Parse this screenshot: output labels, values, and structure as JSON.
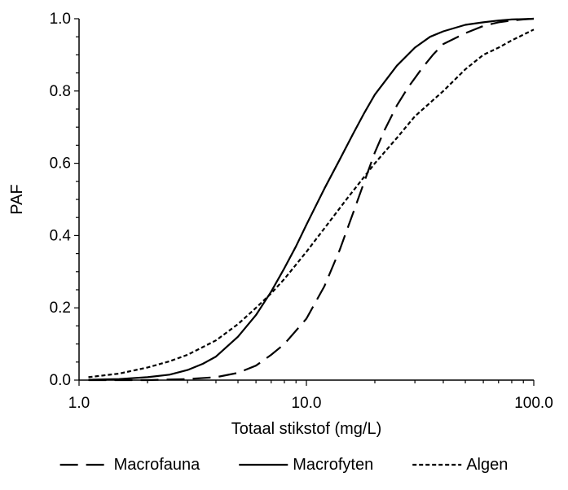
{
  "chart_data": {
    "type": "line",
    "title": "",
    "xlabel": "Totaal stikstof (mg/L)",
    "ylabel": "PAF",
    "x_scale": "log",
    "xlim": [
      1.0,
      100.0
    ],
    "ylim": [
      0.0,
      1.0
    ],
    "x_ticks": [
      1.0,
      10.0,
      100.0
    ],
    "x_tick_labels": [
      "1.0",
      "10.0",
      "100.0"
    ],
    "y_ticks": [
      0.0,
      0.2,
      0.4,
      0.6,
      0.8,
      1.0
    ],
    "y_tick_labels": [
      "0.0",
      "0.2",
      "0.4",
      "0.6",
      "0.8",
      "1.0"
    ],
    "grid": false,
    "legend": "bottom",
    "series": [
      {
        "name": "Macrofauna",
        "style": "long-dash",
        "x": [
          1.1,
          2.0,
          3.0,
          4.0,
          5.0,
          6.0,
          7.0,
          8.0,
          10.0,
          12.0,
          14.0,
          16.0,
          18.0,
          20.0,
          22.0,
          25.0,
          28.0,
          32.0,
          36.0,
          40.0,
          50.0,
          60.0,
          70.0,
          80.0,
          90.0,
          100.0
        ],
        "values": [
          0.0,
          0.0,
          0.003,
          0.008,
          0.02,
          0.04,
          0.07,
          0.1,
          0.17,
          0.26,
          0.36,
          0.46,
          0.55,
          0.63,
          0.69,
          0.76,
          0.81,
          0.86,
          0.9,
          0.93,
          0.96,
          0.98,
          0.99,
          0.995,
          0.998,
          1.0
        ]
      },
      {
        "name": "Macrofyten",
        "style": "solid",
        "x": [
          1.1,
          1.5,
          2.0,
          2.5,
          3.0,
          3.5,
          4.0,
          5.0,
          6.0,
          7.0,
          8.0,
          9.0,
          10.0,
          12.0,
          14.0,
          16.0,
          18.0,
          20.0,
          25.0,
          30.0,
          35.0,
          40.0,
          50.0,
          60.0,
          70.0,
          80.0,
          100.0
        ],
        "values": [
          0.001,
          0.003,
          0.008,
          0.015,
          0.028,
          0.045,
          0.065,
          0.12,
          0.18,
          0.245,
          0.31,
          0.37,
          0.43,
          0.53,
          0.61,
          0.68,
          0.74,
          0.79,
          0.87,
          0.92,
          0.95,
          0.965,
          0.983,
          0.99,
          0.995,
          0.998,
          1.0
        ]
      },
      {
        "name": "Algen",
        "style": "short-dash",
        "x": [
          1.1,
          1.5,
          2.0,
          2.5,
          3.0,
          4.0,
          5.0,
          6.0,
          7.0,
          8.0,
          10.0,
          12.0,
          15.0,
          20.0,
          25.0,
          30.0,
          40.0,
          50.0,
          60.0,
          70.0,
          80.0,
          100.0
        ],
        "values": [
          0.008,
          0.018,
          0.035,
          0.052,
          0.07,
          0.11,
          0.155,
          0.2,
          0.24,
          0.28,
          0.355,
          0.42,
          0.5,
          0.6,
          0.67,
          0.73,
          0.8,
          0.86,
          0.9,
          0.92,
          0.94,
          0.97
        ]
      }
    ]
  }
}
